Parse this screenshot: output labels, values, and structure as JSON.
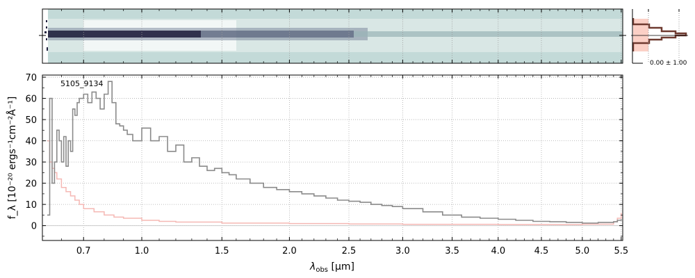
{
  "chart_data": [
    {
      "panel": "spectrum-2d",
      "type": "heatmap",
      "description_free": true,
      "colors": {
        "background": "#c3dad8",
        "dark": "#22223f"
      }
    },
    {
      "panel": "profile",
      "type": "line",
      "profile_label": "0.00 ± 1.00",
      "colors": {
        "fill": "#fbd0c6",
        "line": "#6e3a30"
      }
    },
    {
      "panel": "spectrum-1d",
      "type": "line",
      "object_label": "5105_9134",
      "xlabel_main": "λ",
      "xlabel_sub": "obs",
      "xlabel_unit": " [μm]",
      "ylabel": "f_λ [10⁻²⁰ ergs⁻¹cm⁻²Å⁻¹]",
      "xlim": [
        0.52,
        5.52
      ],
      "ylim": [
        -7,
        71
      ],
      "x_axis_scale": "power-law (λ^0.5)",
      "grid": true,
      "x_ticks": [
        "0.7",
        "1.0",
        "1.5",
        "2.0",
        "2.5",
        "3.0",
        "3.5",
        "4.0",
        "4.5",
        "5.0",
        "5.5"
      ],
      "x_tick_values": [
        0.7,
        1.0,
        1.5,
        2.0,
        2.5,
        3.0,
        3.5,
        4.0,
        4.5,
        5.0,
        5.5
      ],
      "y_ticks": [
        "0",
        "10",
        "20",
        "30",
        "40",
        "50",
        "60",
        "70"
      ],
      "y_tick_values": [
        0,
        10,
        20,
        30,
        40,
        50,
        60,
        70
      ],
      "series": [
        {
          "role": "flux",
          "color": "#8a8a8a",
          "x": [
            0.54,
            0.55,
            0.56,
            0.57,
            0.58,
            0.59,
            0.6,
            0.61,
            0.62,
            0.63,
            0.64,
            0.65,
            0.66,
            0.67,
            0.68,
            0.7,
            0.72,
            0.74,
            0.76,
            0.78,
            0.8,
            0.82,
            0.84,
            0.86,
            0.88,
            0.9,
            0.92,
            0.95,
            1.0,
            1.05,
            1.1,
            1.15,
            1.2,
            1.25,
            1.3,
            1.35,
            1.4,
            1.45,
            1.5,
            1.55,
            1.6,
            1.7,
            1.8,
            1.9,
            2.0,
            2.1,
            2.2,
            2.3,
            2.4,
            2.5,
            2.6,
            2.7,
            2.8,
            2.9,
            3.0,
            3.2,
            3.4,
            3.6,
            3.8,
            4.0,
            4.2,
            4.4,
            4.6,
            4.8,
            5.0,
            5.2,
            5.4,
            5.45,
            5.5
          ],
          "y": [
            5,
            60,
            20,
            30,
            45,
            40,
            30,
            42,
            28,
            40,
            35,
            55,
            52,
            58,
            60,
            62,
            58,
            63,
            60,
            55,
            62,
            68,
            58,
            48,
            47,
            45,
            43,
            40,
            46,
            40,
            42,
            35,
            38,
            30,
            32,
            28,
            26,
            27,
            25,
            24,
            22,
            20,
            18,
            17,
            16,
            15,
            14,
            13,
            12,
            11.5,
            11,
            10,
            9.5,
            9,
            8,
            6.5,
            5,
            4,
            3.5,
            3,
            2.5,
            2,
            1.8,
            1.5,
            1.2,
            1.5,
            1.8,
            2.5,
            3
          ]
        },
        {
          "role": "error",
          "color": "#f5b8b4",
          "x": [
            0.54,
            0.55,
            0.56,
            0.57,
            0.58,
            0.6,
            0.62,
            0.64,
            0.66,
            0.68,
            0.7,
            0.75,
            0.8,
            0.85,
            0.9,
            1.0,
            1.1,
            1.2,
            1.5,
            2.0,
            2.5,
            3.0,
            4.0,
            5.0,
            5.4,
            5.45,
            5.5
          ],
          "y": [
            40,
            30,
            27,
            25,
            22,
            18,
            16,
            14,
            12,
            10,
            8,
            6.5,
            5,
            4,
            3.5,
            2.5,
            2,
            1.7,
            1.2,
            1.0,
            0.8,
            0.6,
            0.5,
            0.7,
            1.8,
            3.5,
            6
          ]
        }
      ]
    }
  ]
}
